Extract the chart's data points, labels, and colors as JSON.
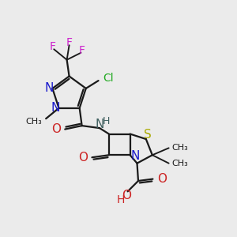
{
  "bg_color": "#ebebeb",
  "bond_color": "#1a1a1a",
  "bond_width": 1.6,
  "figsize": [
    3.0,
    3.0
  ],
  "dpi": 100,
  "xlim": [
    0,
    10
  ],
  "ylim": [
    0,
    10
  ]
}
